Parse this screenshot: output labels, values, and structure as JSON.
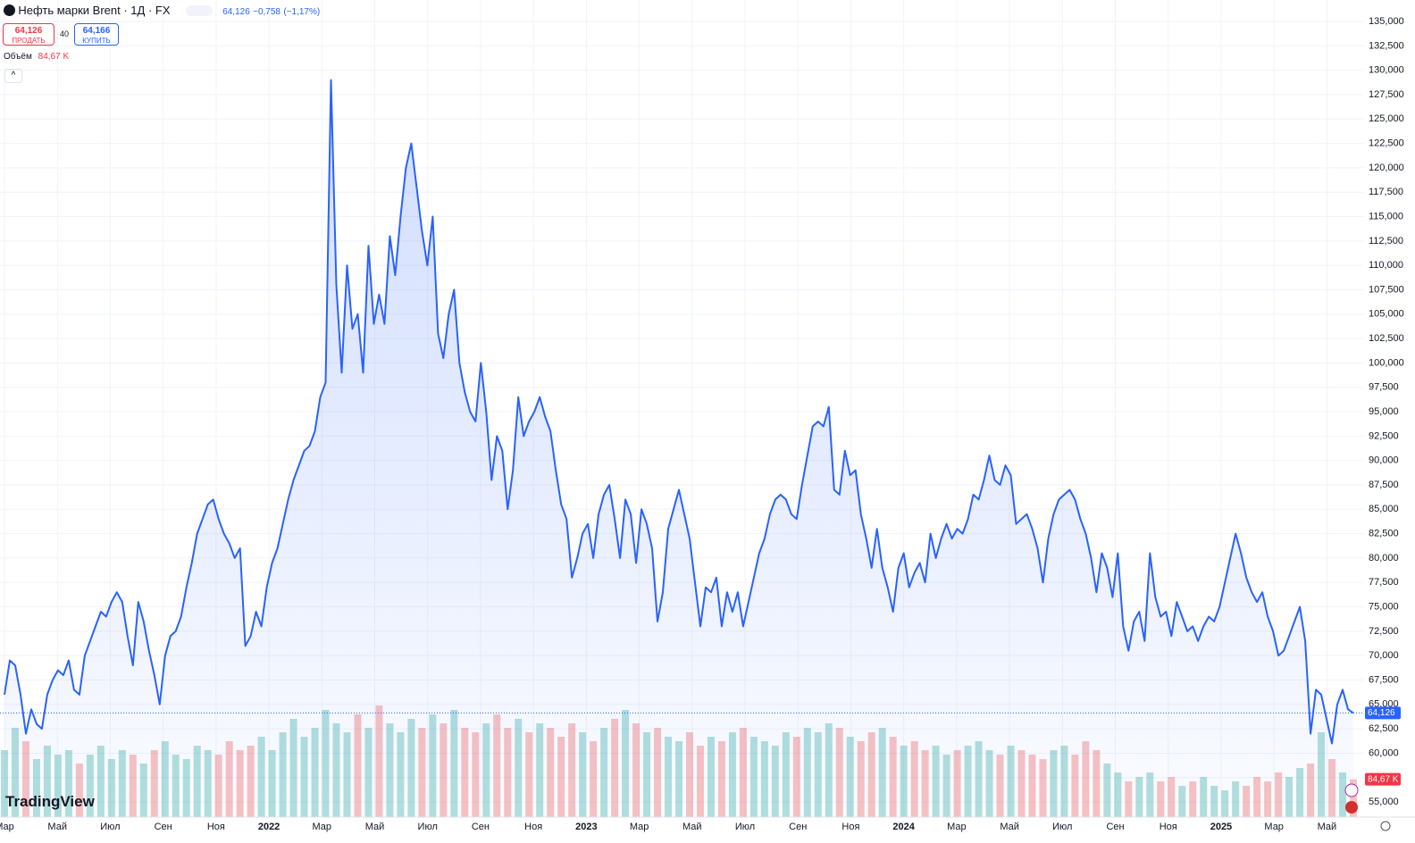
{
  "header": {
    "change": "−0,758",
    "change_pct": "(−1,17%)",
    "sell": {
      "price": "64,126",
      "label": "ПРОДАТЬ"
    },
    "spread": "40",
    "buy": {
      "price": "64,166",
      "label": "КУПИТЬ"
    },
    "logo": "TradingView"
  },
  "chart_data": {
    "type": "line",
    "title": "Нефть марки Brent · 1Д · FX",
    "grid": true,
    "ylim": [
      53450,
      137200
    ],
    "xlim": [
      "2021-03",
      "2025-06"
    ],
    "yticks": [
      {
        "value": 55000,
        "label": "55,000"
      },
      {
        "value": 57500,
        "label": "57,500"
      },
      {
        "value": 60000,
        "label": "60,000"
      },
      {
        "value": 62500,
        "label": "62,500"
      },
      {
        "value": 65000,
        "label": "65,000"
      },
      {
        "value": 67500,
        "label": "67,500"
      },
      {
        "value": 70000,
        "label": "70,000"
      },
      {
        "value": 72500,
        "label": "72,500"
      },
      {
        "value": 75000,
        "label": "75,000"
      },
      {
        "value": 77500,
        "label": "77,500"
      },
      {
        "value": 80000,
        "label": "80,000"
      },
      {
        "value": 82500,
        "label": "82,500"
      },
      {
        "value": 85000,
        "label": "85,000"
      },
      {
        "value": 87500,
        "label": "87,500"
      },
      {
        "value": 90000,
        "label": "90,000"
      },
      {
        "value": 92500,
        "label": "92,500"
      },
      {
        "value": 95000,
        "label": "95,000"
      },
      {
        "value": 97500,
        "label": "97,500"
      },
      {
        "value": 100000,
        "label": "100,000"
      },
      {
        "value": 102500,
        "label": "102,500"
      },
      {
        "value": 105000,
        "label": "105,000"
      },
      {
        "value": 107500,
        "label": "107,500"
      },
      {
        "value": 110000,
        "label": "110,000"
      },
      {
        "value": 112500,
        "label": "112,500"
      },
      {
        "value": 115000,
        "label": "115,000"
      },
      {
        "value": 117500,
        "label": "117,500"
      },
      {
        "value": 120000,
        "label": "120,000"
      },
      {
        "value": 122500,
        "label": "122,500"
      },
      {
        "value": 125000,
        "label": "125,000"
      },
      {
        "value": 127500,
        "label": "127,500"
      },
      {
        "value": 130000,
        "label": "130,000"
      },
      {
        "value": 132500,
        "label": "132,500"
      },
      {
        "value": 135000,
        "label": "135,000"
      }
    ],
    "xticks": [
      {
        "value": "2021-03",
        "label": "Мар"
      },
      {
        "value": "2021-05",
        "label": "Май"
      },
      {
        "value": "2021-07",
        "label": "Июл"
      },
      {
        "value": "2021-09",
        "label": "Сен"
      },
      {
        "value": "2021-11",
        "label": "Ноя"
      },
      {
        "value": "2022-01",
        "label": "2022"
      },
      {
        "value": "2022-03",
        "label": "Мар"
      },
      {
        "value": "2022-05",
        "label": "Май"
      },
      {
        "value": "2022-07",
        "label": "Июл"
      },
      {
        "value": "2022-09",
        "label": "Сен"
      },
      {
        "value": "2022-11",
        "label": "Ноя"
      },
      {
        "value": "2023-01",
        "label": "2023"
      },
      {
        "value": "2023-03",
        "label": "Мар"
      },
      {
        "value": "2023-05",
        "label": "Май"
      },
      {
        "value": "2023-07",
        "label": "Июл"
      },
      {
        "value": "2023-09",
        "label": "Сен"
      },
      {
        "value": "2023-11",
        "label": "Ноя"
      },
      {
        "value": "2024-01",
        "label": "2024"
      },
      {
        "value": "2024-03",
        "label": "Мар"
      },
      {
        "value": "2024-05",
        "label": "Май"
      },
      {
        "value": "2024-07",
        "label": "Июл"
      },
      {
        "value": "2024-09",
        "label": "Сен"
      },
      {
        "value": "2024-11",
        "label": "Ноя"
      },
      {
        "value": "2025-01",
        "label": "2025"
      },
      {
        "value": "2025-03",
        "label": "Мар"
      },
      {
        "value": "2025-05",
        "label": "Май"
      }
    ],
    "series": [
      {
        "color": "#2962ff",
        "last_value_label": "64,126",
        "values": [
          66000,
          69500,
          69000,
          66000,
          62000,
          64500,
          63000,
          62500,
          66000,
          67500,
          68500,
          68000,
          69500,
          66500,
          66000,
          70000,
          71500,
          73000,
          74500,
          74000,
          75500,
          76500,
          75500,
          72000,
          69000,
          75500,
          73500,
          70500,
          68000,
          65000,
          70000,
          72000,
          72500,
          74000,
          77000,
          79500,
          82500,
          84000,
          85500,
          86000,
          84000,
          82500,
          81500,
          80000,
          81000,
          71000,
          72000,
          74500,
          73000,
          77000,
          79500,
          81000,
          83500,
          86000,
          88000,
          89500,
          91000,
          91500,
          93000,
          96500,
          98000,
          129000,
          108000,
          99000,
          110000,
          103500,
          105000,
          99000,
          112000,
          104000,
          107000,
          104000,
          113000,
          109000,
          115000,
          120000,
          122500,
          118000,
          113500,
          110000,
          115000,
          103000,
          100500,
          105000,
          107500,
          100000,
          97000,
          95000,
          94000,
          100000,
          95000,
          88000,
          92500,
          91000,
          85000,
          89000,
          96500,
          92500,
          94000,
          95000,
          96500,
          94500,
          93000,
          89000,
          85500,
          84000,
          78000,
          80000,
          82500,
          83500,
          80000,
          84500,
          86500,
          87500,
          84000,
          80000,
          86000,
          84500,
          79500,
          85000,
          83500,
          81000,
          73500,
          76500,
          83000,
          85000,
          87000,
          84500,
          82000,
          77500,
          73000,
          77000,
          76500,
          78000,
          73000,
          76500,
          74500,
          76500,
          73000,
          75500,
          78000,
          80500,
          82000,
          84500,
          86000,
          86500,
          86000,
          84500,
          84000,
          87500,
          90500,
          93500,
          94000,
          93500,
          95500,
          87000,
          86500,
          91000,
          88500,
          89000,
          84500,
          82000,
          79000,
          83000,
          79000,
          77000,
          74500,
          79000,
          80500,
          77000,
          78500,
          79500,
          77500,
          82500,
          80000,
          82000,
          83500,
          82000,
          83000,
          82500,
          84000,
          86500,
          86000,
          88000,
          90500,
          88000,
          87500,
          89500,
          88500,
          83500,
          84000,
          84500,
          83000,
          81000,
          77500,
          82000,
          84500,
          86000,
          86500,
          87000,
          86000,
          84000,
          82500,
          80000,
          76500,
          80500,
          79000,
          76000,
          80500,
          73000,
          70500,
          73500,
          74500,
          71500,
          80500,
          76000,
          74000,
          74500,
          72000,
          75500,
          74000,
          72500,
          73000,
          71500,
          73000,
          74000,
          73500,
          75000,
          77500,
          80000,
          82500,
          80500,
          78000,
          76500,
          75500,
          76500,
          74000,
          72500,
          70000,
          70500,
          72000,
          73500,
          75000,
          71500,
          62000,
          66500,
          66000,
          63500,
          61000,
          65000,
          66500,
          64500,
          64126
        ]
      },
      {
        "name": "Объём",
        "up_color": "#26a69a",
        "down_color": "#ef5350",
        "vlim": [
          0,
          400
        ],
        "last_value_label": "84,67 K",
        "values": [
          150,
          200,
          170,
          130,
          160,
          140,
          150,
          120,
          140,
          160,
          130,
          150,
          140,
          120,
          150,
          170,
          140,
          130,
          160,
          150,
          140,
          170,
          150,
          160,
          180,
          150,
          190,
          220,
          180,
          200,
          240,
          210,
          190,
          230,
          200,
          250,
          210,
          190,
          220,
          200,
          230,
          210,
          240,
          200,
          190,
          210,
          230,
          200,
          220,
          190,
          210,
          200,
          180,
          210,
          190,
          170,
          200,
          220,
          240,
          210,
          190,
          200,
          180,
          170,
          190,
          160,
          180,
          170,
          190,
          200,
          180,
          170,
          160,
          190,
          180,
          200,
          190,
          210,
          200,
          180,
          170,
          190,
          200,
          180,
          160,
          170,
          150,
          160,
          140,
          150,
          160,
          170,
          150,
          140,
          160,
          150,
          140,
          130,
          150,
          160,
          140,
          170,
          150,
          120,
          100,
          80,
          90,
          100,
          80,
          90,
          70,
          80,
          90,
          70,
          60,
          80,
          70,
          90,
          80,
          100,
          90,
          110,
          120,
          190,
          130,
          100,
          84.67
        ]
      }
    ]
  }
}
